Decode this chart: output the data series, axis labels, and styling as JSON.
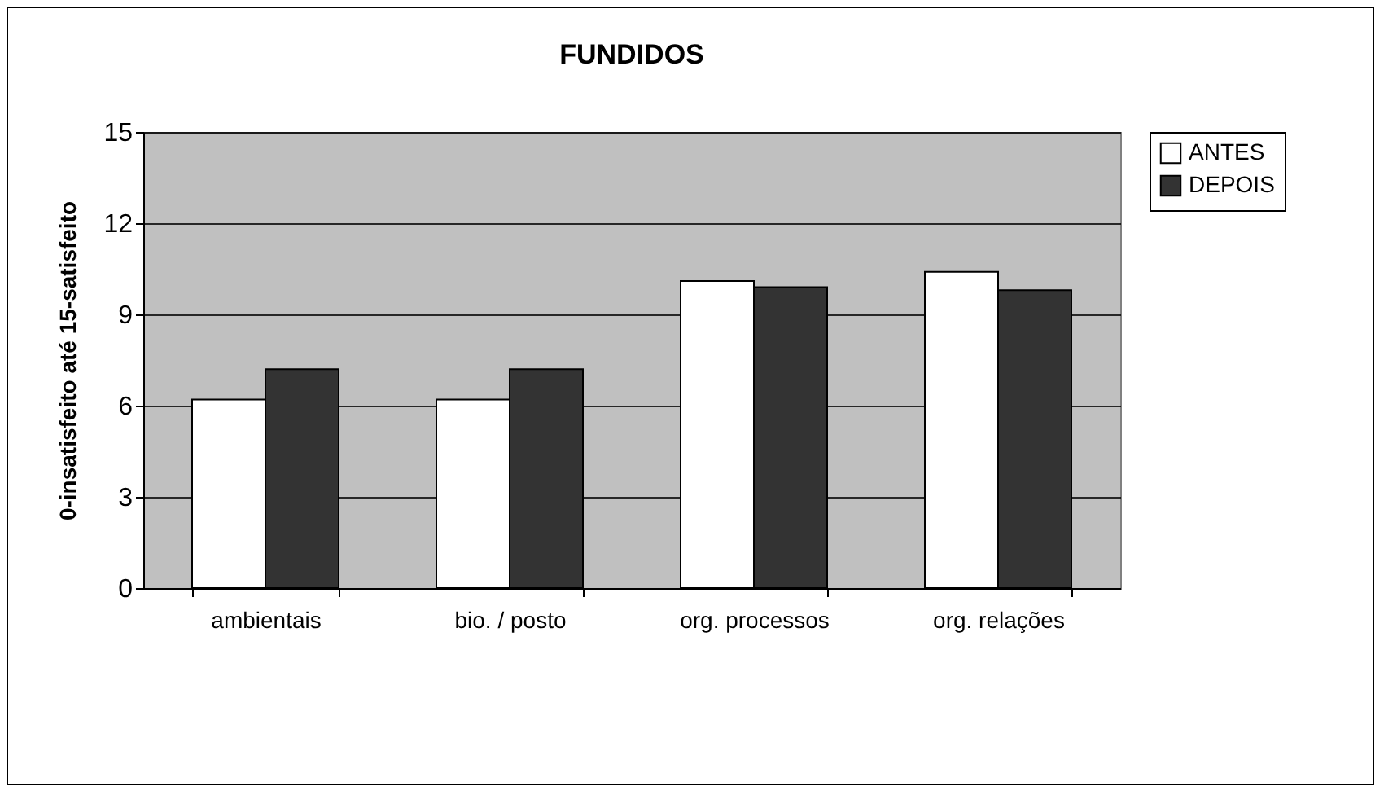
{
  "chart_data": {
    "type": "bar",
    "title": "FUNDIDOS",
    "ylabel": "0-insatisfeito até 15-satisfeito",
    "categories": [
      "ambientais",
      "bio. / posto",
      "org. processos",
      "org. relações"
    ],
    "series": [
      {
        "name": "ANTES",
        "color": "#ffffff",
        "values": [
          6.2,
          6.2,
          10.1,
          10.4
        ]
      },
      {
        "name": "DEPOIS",
        "color": "#333333",
        "values": [
          7.2,
          7.2,
          9.9,
          9.8
        ]
      }
    ],
    "ylim": [
      0,
      15
    ],
    "yticks": [
      0,
      3,
      6,
      9,
      12,
      15
    ],
    "grid": "y",
    "legend": "right"
  }
}
